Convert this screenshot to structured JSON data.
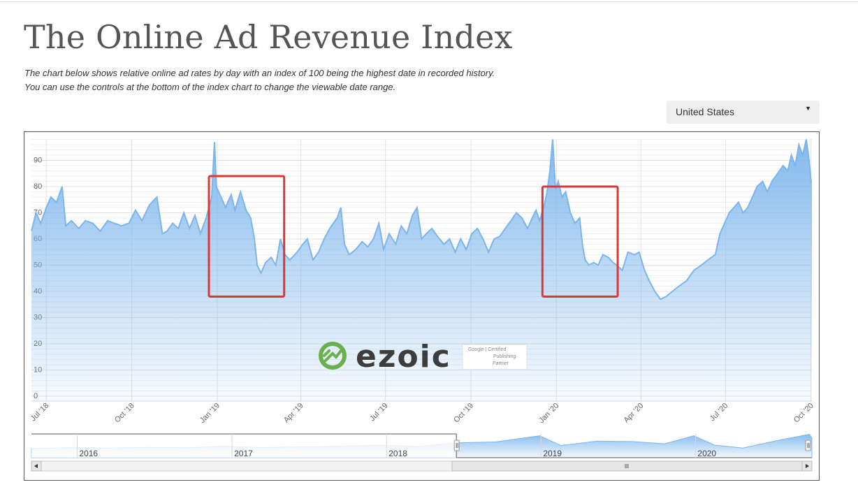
{
  "page": {
    "title": "The Online Ad Revenue Index",
    "subtitle_line1": "The chart below shows relative online ad rates by day with an index of 100 being the highest date in recorded history.",
    "subtitle_line2": "You can use the controls at the bottom of the index chart to change the viewable date range."
  },
  "country_selector": {
    "selected": "United States",
    "caret_icon": "caret-down-icon"
  },
  "watermark": {
    "logo_icon": "ezoic-swirl-icon",
    "brand": "ezoic",
    "badge_line1": "Google | Certified",
    "badge_line2": "Publishing",
    "badge_line3": "Partner"
  },
  "chart_data": {
    "type": "area",
    "title": "",
    "xlabel": "",
    "ylabel": "",
    "x_range": [
      "2018-06-15",
      "2020-10-02"
    ],
    "ylim": [
      0,
      100
    ],
    "y_ticks": [
      0,
      10,
      20,
      30,
      40,
      50,
      60,
      70,
      80,
      90
    ],
    "x_ticks": [
      {
        "date": "2018-07-01",
        "label": "Jul '18"
      },
      {
        "date": "2018-10-01",
        "label": "Oct '18"
      },
      {
        "date": "2019-01-01",
        "label": "Jan '19"
      },
      {
        "date": "2019-04-01",
        "label": "Apr '19"
      },
      {
        "date": "2019-07-01",
        "label": "Jul '19"
      },
      {
        "date": "2019-10-01",
        "label": "Oct '19"
      },
      {
        "date": "2020-01-01",
        "label": "Jan '20"
      },
      {
        "date": "2020-04-01",
        "label": "Apr '20"
      },
      {
        "date": "2020-07-01",
        "label": "Jul '20"
      },
      {
        "date": "2020-10-01",
        "label": "Oct '20"
      }
    ],
    "grid": true,
    "series": [
      {
        "color": "#7cb5ec",
        "points": [
          [
            "2018-06-15",
            63
          ],
          [
            "2018-06-20",
            70
          ],
          [
            "2018-06-25",
            66
          ],
          [
            "2018-07-01",
            72
          ],
          [
            "2018-07-06",
            76
          ],
          [
            "2018-07-12",
            74
          ],
          [
            "2018-07-18",
            80
          ],
          [
            "2018-07-22",
            65
          ],
          [
            "2018-07-28",
            67
          ],
          [
            "2018-08-05",
            64
          ],
          [
            "2018-08-12",
            67
          ],
          [
            "2018-08-20",
            66
          ],
          [
            "2018-08-28",
            63
          ],
          [
            "2018-09-05",
            67
          ],
          [
            "2018-09-12",
            66
          ],
          [
            "2018-09-20",
            65
          ],
          [
            "2018-09-28",
            66
          ],
          [
            "2018-10-05",
            71
          ],
          [
            "2018-10-12",
            67
          ],
          [
            "2018-10-20",
            73
          ],
          [
            "2018-10-28",
            76
          ],
          [
            "2018-11-03",
            62
          ],
          [
            "2018-11-08",
            63
          ],
          [
            "2018-11-14",
            66
          ],
          [
            "2018-11-20",
            64
          ],
          [
            "2018-11-26",
            70
          ],
          [
            "2018-12-02",
            64
          ],
          [
            "2018-12-08",
            69
          ],
          [
            "2018-12-14",
            62
          ],
          [
            "2018-12-20",
            68
          ],
          [
            "2018-12-26",
            76
          ],
          [
            "2018-12-29",
            97
          ],
          [
            "2018-12-31",
            80
          ],
          [
            "2019-01-05",
            76
          ],
          [
            "2019-01-10",
            72
          ],
          [
            "2019-01-16",
            77
          ],
          [
            "2019-01-20",
            71
          ],
          [
            "2019-01-26",
            78
          ],
          [
            "2019-02-01",
            71
          ],
          [
            "2019-02-06",
            68
          ],
          [
            "2019-02-10",
            60
          ],
          [
            "2019-02-13",
            50
          ],
          [
            "2019-02-17",
            47
          ],
          [
            "2019-02-22",
            51
          ],
          [
            "2019-02-28",
            53
          ],
          [
            "2019-03-05",
            50
          ],
          [
            "2019-03-10",
            60
          ],
          [
            "2019-03-15",
            54
          ],
          [
            "2019-03-20",
            52
          ],
          [
            "2019-03-28",
            55
          ],
          [
            "2019-04-03",
            58
          ],
          [
            "2019-04-08",
            60
          ],
          [
            "2019-04-14",
            52
          ],
          [
            "2019-04-20",
            55
          ],
          [
            "2019-04-26",
            60
          ],
          [
            "2019-05-02",
            64
          ],
          [
            "2019-05-06",
            66
          ],
          [
            "2019-05-10",
            68
          ],
          [
            "2019-05-14",
            72
          ],
          [
            "2019-05-18",
            58
          ],
          [
            "2019-05-23",
            54
          ],
          [
            "2019-05-30",
            56
          ],
          [
            "2019-06-06",
            59
          ],
          [
            "2019-06-12",
            57
          ],
          [
            "2019-06-18",
            60
          ],
          [
            "2019-06-24",
            66
          ],
          [
            "2019-06-29",
            56
          ],
          [
            "2019-07-05",
            62
          ],
          [
            "2019-07-12",
            58
          ],
          [
            "2019-07-18",
            65
          ],
          [
            "2019-07-24",
            62
          ],
          [
            "2019-07-30",
            69
          ],
          [
            "2019-08-04",
            72
          ],
          [
            "2019-08-09",
            60
          ],
          [
            "2019-08-14",
            62
          ],
          [
            "2019-08-20",
            64
          ],
          [
            "2019-08-26",
            61
          ],
          [
            "2019-09-02",
            58
          ],
          [
            "2019-09-08",
            60
          ],
          [
            "2019-09-14",
            55
          ],
          [
            "2019-09-20",
            60
          ],
          [
            "2019-09-26",
            56
          ],
          [
            "2019-10-02",
            62
          ],
          [
            "2019-10-08",
            64
          ],
          [
            "2019-10-14",
            60
          ],
          [
            "2019-10-20",
            55
          ],
          [
            "2019-10-26",
            60
          ],
          [
            "2019-11-01",
            61
          ],
          [
            "2019-11-07",
            64
          ],
          [
            "2019-11-13",
            67
          ],
          [
            "2019-11-19",
            70
          ],
          [
            "2019-11-25",
            68
          ],
          [
            "2019-12-01",
            64
          ],
          [
            "2019-12-06",
            68
          ],
          [
            "2019-12-10",
            71
          ],
          [
            "2019-12-14",
            67
          ],
          [
            "2019-12-19",
            73
          ],
          [
            "2019-12-22",
            78
          ],
          [
            "2019-12-25",
            86
          ],
          [
            "2019-12-28",
            98
          ],
          [
            "2019-12-31",
            79
          ],
          [
            "2020-01-03",
            82
          ],
          [
            "2020-01-07",
            76
          ],
          [
            "2020-01-11",
            78
          ],
          [
            "2020-01-16",
            70
          ],
          [
            "2020-01-21",
            66
          ],
          [
            "2020-01-26",
            68
          ],
          [
            "2020-01-29",
            58
          ],
          [
            "2020-02-01",
            52
          ],
          [
            "2020-02-05",
            50
          ],
          [
            "2020-02-10",
            51
          ],
          [
            "2020-02-15",
            50
          ],
          [
            "2020-02-20",
            54
          ],
          [
            "2020-02-26",
            53
          ],
          [
            "2020-03-02",
            51
          ],
          [
            "2020-03-06",
            50
          ],
          [
            "2020-03-12",
            48
          ],
          [
            "2020-03-18",
            55
          ],
          [
            "2020-03-25",
            54
          ],
          [
            "2020-03-30",
            55
          ],
          [
            "2020-04-05",
            48
          ],
          [
            "2020-04-10",
            44
          ],
          [
            "2020-04-16",
            40
          ],
          [
            "2020-04-22",
            37
          ],
          [
            "2020-04-28",
            38
          ],
          [
            "2020-05-05",
            40
          ],
          [
            "2020-05-12",
            42
          ],
          [
            "2020-05-20",
            44
          ],
          [
            "2020-05-28",
            48
          ],
          [
            "2020-06-05",
            50
          ],
          [
            "2020-06-12",
            52
          ],
          [
            "2020-06-20",
            54
          ],
          [
            "2020-06-25",
            62
          ],
          [
            "2020-06-30",
            66
          ],
          [
            "2020-07-05",
            70
          ],
          [
            "2020-07-10",
            72
          ],
          [
            "2020-07-15",
            74
          ],
          [
            "2020-07-20",
            70
          ],
          [
            "2020-07-25",
            72
          ],
          [
            "2020-07-30",
            76
          ],
          [
            "2020-08-04",
            80
          ],
          [
            "2020-08-10",
            82
          ],
          [
            "2020-08-15",
            78
          ],
          [
            "2020-08-20",
            82
          ],
          [
            "2020-08-26",
            85
          ],
          [
            "2020-09-01",
            88
          ],
          [
            "2020-09-06",
            86
          ],
          [
            "2020-09-10",
            92
          ],
          [
            "2020-09-14",
            88
          ],
          [
            "2020-09-18",
            96
          ],
          [
            "2020-09-22",
            92
          ],
          [
            "2020-09-26",
            98
          ],
          [
            "2020-09-29",
            90
          ],
          [
            "2020-10-01",
            82
          ],
          [
            "2020-10-02",
            82
          ]
        ]
      }
    ],
    "annotations": [
      {
        "type": "highlight-box",
        "color": "#e03535",
        "x_start": "2018-12-23",
        "x_end": "2019-03-14",
        "y_top": 84,
        "y_bottom": 38
      },
      {
        "type": "highlight-box",
        "color": "#e03535",
        "x_start": "2019-12-17",
        "x_end": "2020-03-07",
        "y_top": 80,
        "y_bottom": 38
      }
    ],
    "navigator": {
      "year_labels": [
        "2016",
        "2017",
        "2018",
        "2019",
        "2020"
      ],
      "overview_range": [
        "2015-09-15",
        "2020-10-02"
      ],
      "selected_range": [
        "2018-06-15",
        "2020-10-02"
      ],
      "overview_points": [
        [
          "2015-09-15",
          35
        ],
        [
          "2015-12-15",
          38
        ],
        [
          "2016-03-15",
          37
        ],
        [
          "2016-06-15",
          40
        ],
        [
          "2016-09-15",
          38
        ],
        [
          "2016-12-15",
          44
        ],
        [
          "2017-03-15",
          39
        ],
        [
          "2017-06-15",
          42
        ],
        [
          "2017-09-15",
          44
        ],
        [
          "2017-12-15",
          50
        ],
        [
          "2018-03-15",
          43
        ],
        [
          "2018-06-15",
          60
        ],
        [
          "2018-09-15",
          64
        ],
        [
          "2018-12-29",
          92
        ],
        [
          "2019-02-17",
          48
        ],
        [
          "2019-05-14",
          68
        ],
        [
          "2019-08-04",
          66
        ],
        [
          "2019-10-20",
          56
        ],
        [
          "2019-12-28",
          92
        ],
        [
          "2020-02-15",
          50
        ],
        [
          "2020-04-22",
          37
        ],
        [
          "2020-07-10",
          70
        ],
        [
          "2020-09-26",
          98
        ],
        [
          "2020-10-02",
          82
        ]
      ],
      "grip_icon": "grip-lines-icon",
      "scroll_left_icon": "arrow-left-icon",
      "scroll_right_icon": "arrow-right-icon"
    }
  }
}
